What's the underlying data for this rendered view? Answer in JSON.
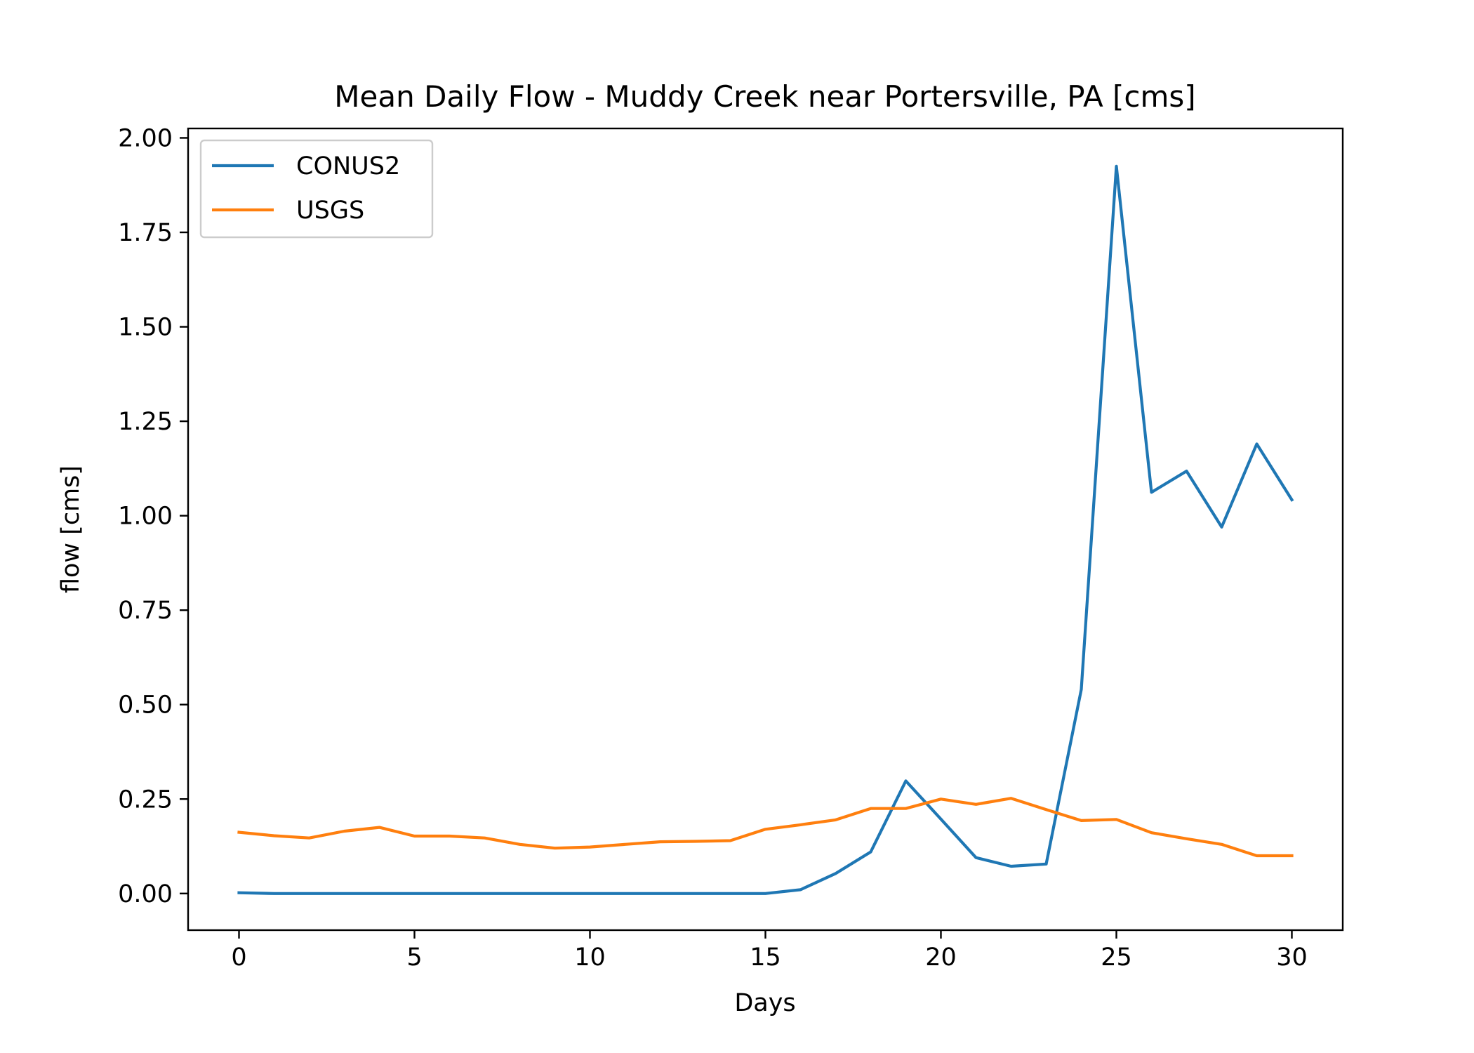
{
  "chart_data": {
    "type": "line",
    "title": "Mean Daily Flow - Muddy Creek near Portersville, PA [cms]",
    "xlabel": "Days",
    "ylabel": "flow [cms]",
    "xlim": [
      -1.45,
      31.45
    ],
    "ylim": [
      -0.097,
      2.025
    ],
    "xticks": [
      0,
      5,
      10,
      15,
      20,
      25,
      30
    ],
    "xtick_labels": [
      "0",
      "5",
      "10",
      "15",
      "20",
      "25",
      "30"
    ],
    "yticks": [
      0,
      0.25,
      0.5,
      0.75,
      1.0,
      1.25,
      1.5,
      1.75,
      2.0
    ],
    "ytick_labels": [
      "0.00",
      "0.25",
      "0.50",
      "0.75",
      "1.00",
      "1.25",
      "1.50",
      "1.75",
      "2.00"
    ],
    "grid": false,
    "legend_position": "top-left",
    "x": [
      0,
      1,
      2,
      3,
      4,
      5,
      6,
      7,
      8,
      9,
      10,
      11,
      12,
      13,
      14,
      15,
      16,
      17,
      18,
      19,
      20,
      21,
      22,
      23,
      24,
      25,
      26,
      27,
      28,
      29,
      30
    ],
    "series": [
      {
        "name": "CONUS2",
        "color": "#1f77b4",
        "values": [
          0.002,
          0.0,
          0.0,
          0.0,
          0.0,
          0.0,
          0.0,
          0.0,
          0.0,
          0.0,
          0.0,
          0.0,
          0.0,
          0.0,
          0.0,
          0.0,
          0.01,
          0.053,
          0.11,
          0.298,
          0.197,
          0.095,
          0.072,
          0.078,
          0.54,
          1.925,
          1.062,
          1.118,
          0.97,
          1.19,
          1.042
        ]
      },
      {
        "name": "USGS",
        "color": "#ff7f0e",
        "values": [
          0.162,
          0.153,
          0.147,
          0.165,
          0.175,
          0.152,
          0.152,
          0.147,
          0.13,
          0.12,
          0.123,
          0.13,
          0.137,
          0.138,
          0.14,
          0.17,
          0.182,
          0.195,
          0.225,
          0.225,
          0.25,
          0.236,
          0.252,
          0.222,
          0.193,
          0.196,
          0.161,
          0.145,
          0.13,
          0.1,
          0.1
        ]
      }
    ]
  }
}
